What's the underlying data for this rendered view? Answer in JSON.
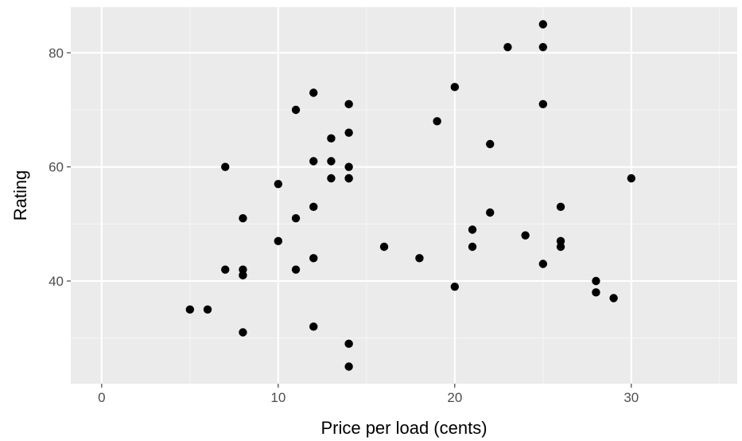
{
  "chart_data": {
    "type": "scatter",
    "title": "",
    "xlabel": "Price per load (cents)",
    "ylabel": "Rating",
    "xlim": [
      -1.75,
      36.0
    ],
    "ylim": [
      22.0,
      88.0
    ],
    "x_ticks": [
      0,
      10,
      20,
      30
    ],
    "x_tick_labels": [
      "0",
      "10",
      "20",
      "30"
    ],
    "y_ticks": [
      40,
      60,
      80
    ],
    "y_tick_labels": [
      "40",
      "60",
      "80"
    ],
    "grid": true,
    "legend": "none",
    "colors": {
      "panel": "#ebebeb",
      "grid_major": "#ffffff",
      "grid_minor": "#f5f5f5",
      "point": "#000000",
      "tick": "#333333"
    },
    "points": [
      {
        "x": 5,
        "y": 35
      },
      {
        "x": 6,
        "y": 35
      },
      {
        "x": 7,
        "y": 60
      },
      {
        "x": 7,
        "y": 42
      },
      {
        "x": 8,
        "y": 51
      },
      {
        "x": 8,
        "y": 42
      },
      {
        "x": 8,
        "y": 41
      },
      {
        "x": 8,
        "y": 31
      },
      {
        "x": 10,
        "y": 57
      },
      {
        "x": 10,
        "y": 47
      },
      {
        "x": 11,
        "y": 70
      },
      {
        "x": 11,
        "y": 51
      },
      {
        "x": 11,
        "y": 42
      },
      {
        "x": 12,
        "y": 73
      },
      {
        "x": 12,
        "y": 61
      },
      {
        "x": 12,
        "y": 53
      },
      {
        "x": 12,
        "y": 44
      },
      {
        "x": 12,
        "y": 32
      },
      {
        "x": 13,
        "y": 65
      },
      {
        "x": 13,
        "y": 61
      },
      {
        "x": 13,
        "y": 58
      },
      {
        "x": 14,
        "y": 71
      },
      {
        "x": 14,
        "y": 66
      },
      {
        "x": 14,
        "y": 60
      },
      {
        "x": 14,
        "y": 58
      },
      {
        "x": 14,
        "y": 58
      },
      {
        "x": 14,
        "y": 29
      },
      {
        "x": 14,
        "y": 25
      },
      {
        "x": 16,
        "y": 46
      },
      {
        "x": 18,
        "y": 44
      },
      {
        "x": 19,
        "y": 68
      },
      {
        "x": 20,
        "y": 74
      },
      {
        "x": 20,
        "y": 39
      },
      {
        "x": 21,
        "y": 49
      },
      {
        "x": 21,
        "y": 46
      },
      {
        "x": 22,
        "y": 64
      },
      {
        "x": 22,
        "y": 52
      },
      {
        "x": 23,
        "y": 81
      },
      {
        "x": 24,
        "y": 48
      },
      {
        "x": 25,
        "y": 85
      },
      {
        "x": 25,
        "y": 81
      },
      {
        "x": 25,
        "y": 71
      },
      {
        "x": 25,
        "y": 43
      },
      {
        "x": 26,
        "y": 53
      },
      {
        "x": 26,
        "y": 47
      },
      {
        "x": 26,
        "y": 46
      },
      {
        "x": 28,
        "y": 40
      },
      {
        "x": 28,
        "y": 38
      },
      {
        "x": 29,
        "y": 37
      },
      {
        "x": 30,
        "y": 58
      }
    ]
  }
}
